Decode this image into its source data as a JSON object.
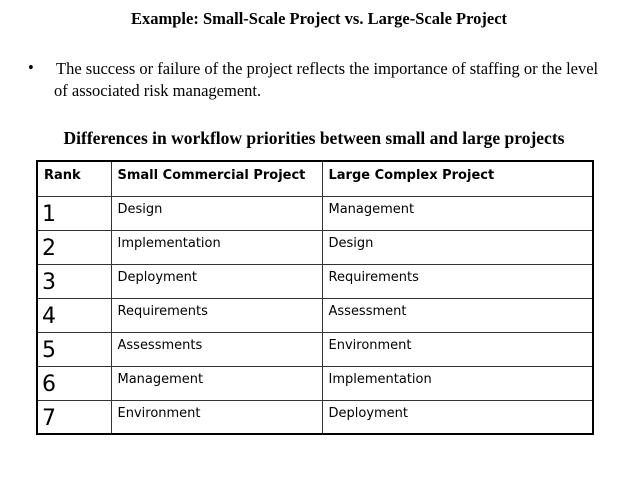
{
  "title": "Example: Small-Scale Project vs. Large-Scale Project",
  "bullet": {
    "marker": "•",
    "text": "The success or failure of the project reflects the importance of staffing or the level of associated risk management."
  },
  "subtitle": "Differences in workflow priorities between small and large projects",
  "table": {
    "headers": [
      "Rank",
      "Small Commercial Project",
      "Large Complex Project"
    ],
    "rows": [
      [
        "1",
        "Design",
        "Management"
      ],
      [
        "2",
        "Implementation",
        "Design"
      ],
      [
        "3",
        "Deployment",
        "Requirements"
      ],
      [
        "4",
        "Requirements",
        "Assessment"
      ],
      [
        "5",
        "Assessments",
        "Environment"
      ],
      [
        "6",
        "Management",
        "Implementation"
      ],
      [
        "7",
        "Environment",
        "Deployment"
      ]
    ]
  }
}
